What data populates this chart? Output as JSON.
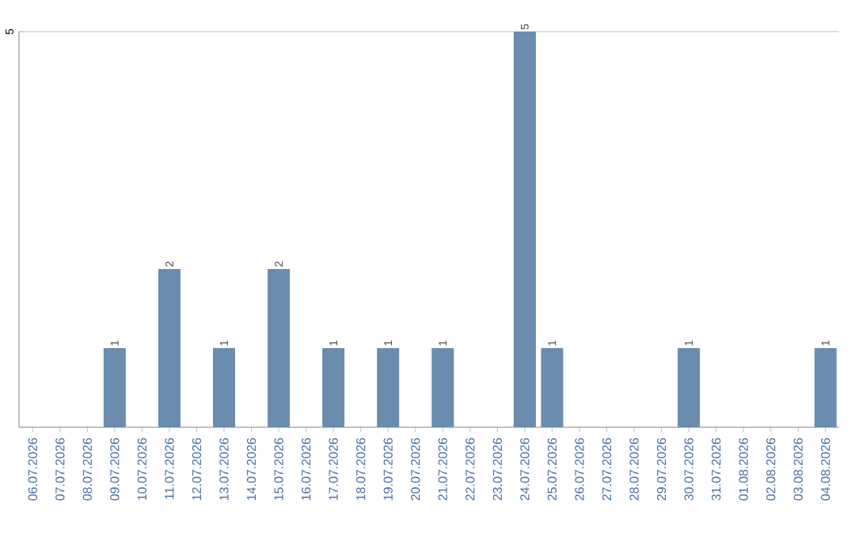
{
  "chart_data": {
    "type": "bar",
    "categories": [
      "06.07.2026",
      "07.07.2026",
      "08.07.2026",
      "09.07.2026",
      "10.07.2026",
      "11.07.2026",
      "12.07.2026",
      "13.07.2026",
      "14.07.2026",
      "15.07.2026",
      "16.07.2026",
      "17.07.2026",
      "18.07.2026",
      "19.07.2026",
      "20.07.2026",
      "21.07.2026",
      "22.07.2026",
      "23.07.2026",
      "24.07.2026",
      "25.07.2026",
      "26.07.2026",
      "27.07.2026",
      "28.07.2026",
      "29.07.2026",
      "30.07.2026",
      "31.07.2026",
      "01.08.2026",
      "02.08.2026",
      "03.08.2026",
      "04.08.2026"
    ],
    "values": [
      0,
      0,
      0,
      1,
      0,
      2,
      0,
      1,
      0,
      2,
      0,
      1,
      0,
      1,
      0,
      1,
      0,
      0,
      5,
      1,
      0,
      0,
      0,
      0,
      1,
      0,
      0,
      0,
      0,
      1
    ],
    "value_labels": [
      null,
      null,
      null,
      "1",
      null,
      "2",
      null,
      "1",
      null,
      "2",
      null,
      "1",
      null,
      "1",
      null,
      "1",
      null,
      null,
      "5",
      "1",
      null,
      null,
      null,
      null,
      "1",
      null,
      null,
      null,
      null,
      "1"
    ],
    "color": "#6b8cae",
    "ylim": [
      0,
      5
    ],
    "yticks": [
      5
    ]
  }
}
